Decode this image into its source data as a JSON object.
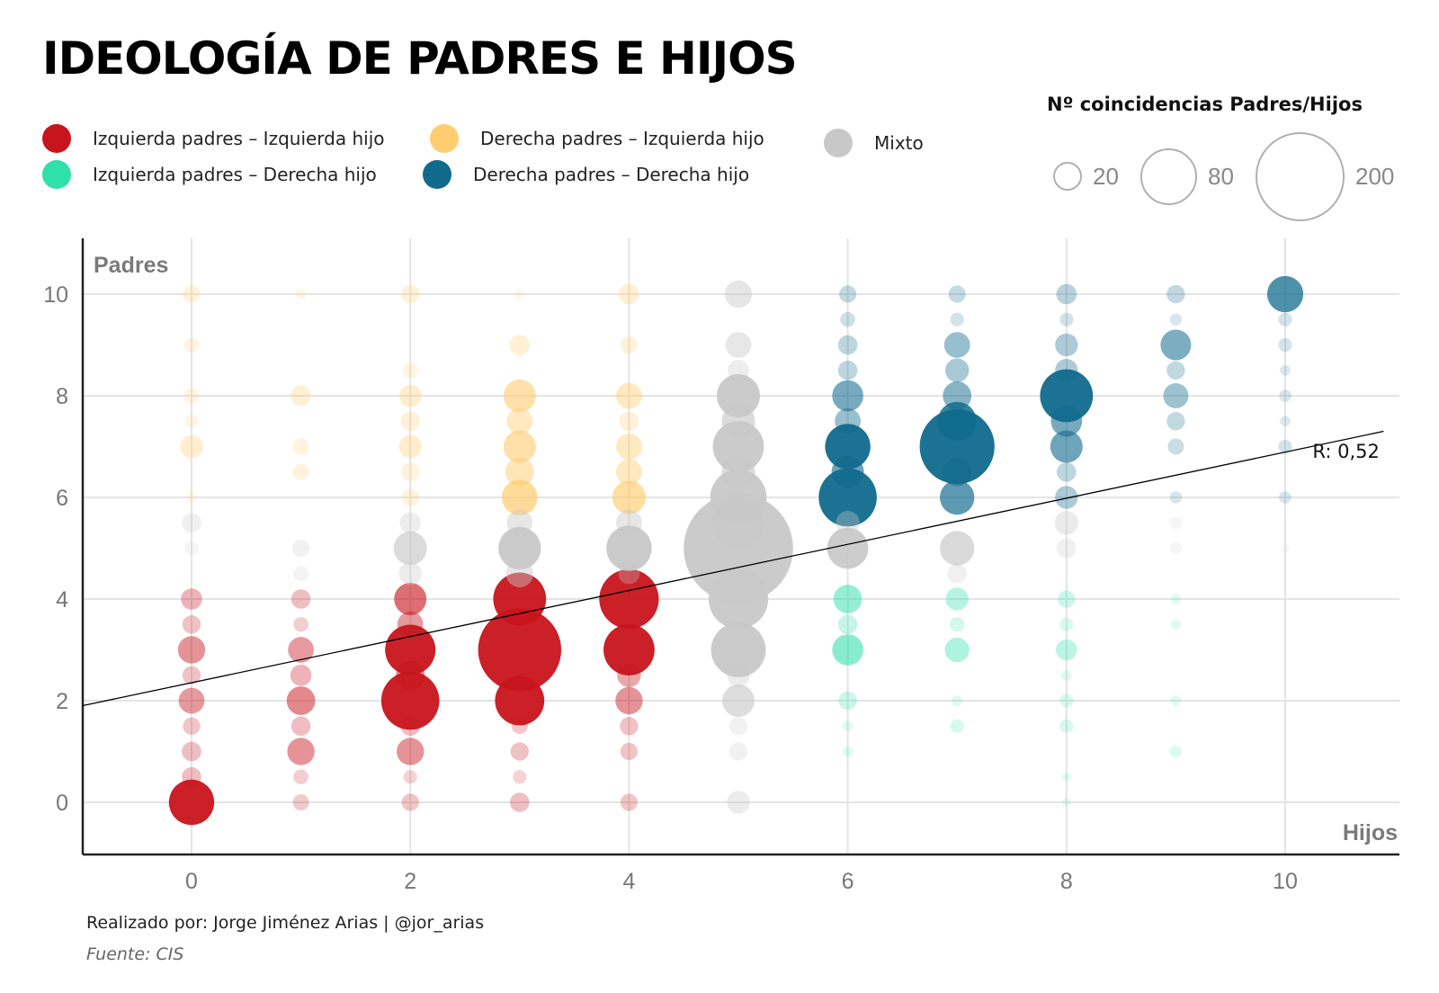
{
  "title": "IDEOLOGÍA DE PADRES E HIJOS",
  "legend": {
    "items": [
      {
        "label": "Izquierda padres – Izquierda hijo",
        "color": "#c8141c"
      },
      {
        "label": "Izquierda padres – Derecha hijo",
        "color": "#2ee0aa"
      },
      {
        "label": "Derecha padres – Izquierda hijo",
        "color": "#ffcc70"
      },
      {
        "label": "Derecha padres – Derecha hijo",
        "color": "#106a8c"
      },
      {
        "label": "Mixto",
        "color": "#c8c8c8"
      }
    ],
    "size_title": "Nº coincidencias Padres/Hijos",
    "sizes": [
      {
        "label": "20"
      },
      {
        "label": "80"
      },
      {
        "label": "200"
      }
    ]
  },
  "chart_data": {
    "type": "scatter",
    "title": "IDEOLOGÍA DE PADRES E HIJOS",
    "xlabel": "Hijos",
    "ylabel": "Padres",
    "xlim": [
      -1,
      11
    ],
    "ylim": [
      -1,
      11
    ],
    "x_ticks": [
      "0",
      "2",
      "4",
      "6",
      "8",
      "10"
    ],
    "y_ticks": [
      "0",
      "2",
      "4",
      "6",
      "8",
      "10"
    ],
    "size_encoding": "Nº coincidencias Padres/Hijos",
    "regression": {
      "label": "R: 0,52",
      "x0": -1,
      "y0": 1.9,
      "x1": 10.9,
      "y1": 7.3
    },
    "categories": {
      "LL": {
        "name": "Izquierda padres – Izquierda hijo",
        "color": "#c8141c"
      },
      "LR": {
        "name": "Izquierda padres – Derecha hijo",
        "color": "#2ee0aa"
      },
      "RL": {
        "name": "Derecha padres – Izquierda hijo",
        "color": "#ffcc70"
      },
      "RR": {
        "name": "Derecha padres – Derecha hijo",
        "color": "#106a8c"
      },
      "M": {
        "name": "Mixto",
        "color": "#c8c8c8"
      }
    },
    "points": [
      {
        "x": 0,
        "y": 10,
        "n": 8,
        "cat": "RL"
      },
      {
        "x": 0,
        "y": 9,
        "n": 6,
        "cat": "RL"
      },
      {
        "x": 0,
        "y": 8,
        "n": 6,
        "cat": "RL"
      },
      {
        "x": 0,
        "y": 7.5,
        "n": 5,
        "cat": "RL"
      },
      {
        "x": 0,
        "y": 7,
        "n": 14,
        "cat": "RL"
      },
      {
        "x": 0,
        "y": 6,
        "n": 3,
        "cat": "RL"
      },
      {
        "x": 0,
        "y": 5.5,
        "n": 10,
        "cat": "M"
      },
      {
        "x": 0,
        "y": 5,
        "n": 5,
        "cat": "M"
      },
      {
        "x": 0,
        "y": 4,
        "n": 12,
        "cat": "LL"
      },
      {
        "x": 0,
        "y": 3.5,
        "n": 9,
        "cat": "LL"
      },
      {
        "x": 0,
        "y": 3,
        "n": 20,
        "cat": "LL"
      },
      {
        "x": 0,
        "y": 2.5,
        "n": 9,
        "cat": "LL"
      },
      {
        "x": 0,
        "y": 2,
        "n": 18,
        "cat": "LL"
      },
      {
        "x": 0,
        "y": 1.5,
        "n": 8,
        "cat": "LL"
      },
      {
        "x": 0,
        "y": 1,
        "n": 10,
        "cat": "LL"
      },
      {
        "x": 0,
        "y": 0.5,
        "n": 10,
        "cat": "LL"
      },
      {
        "x": 0,
        "y": 0,
        "n": 55,
        "cat": "LL"
      },
      {
        "x": 1,
        "y": 10,
        "n": 3,
        "cat": "RL"
      },
      {
        "x": 1,
        "y": 8,
        "n": 11,
        "cat": "RL"
      },
      {
        "x": 1,
        "y": 7,
        "n": 7,
        "cat": "RL"
      },
      {
        "x": 1,
        "y": 6.5,
        "n": 7,
        "cat": "RL"
      },
      {
        "x": 1,
        "y": 5,
        "n": 8,
        "cat": "M"
      },
      {
        "x": 1,
        "y": 4.5,
        "n": 6,
        "cat": "M"
      },
      {
        "x": 1,
        "y": 4,
        "n": 10,
        "cat": "LL"
      },
      {
        "x": 1,
        "y": 3.5,
        "n": 6,
        "cat": "LL"
      },
      {
        "x": 1,
        "y": 3,
        "n": 18,
        "cat": "LL"
      },
      {
        "x": 1,
        "y": 2.5,
        "n": 12,
        "cat": "LL"
      },
      {
        "x": 1,
        "y": 2,
        "n": 22,
        "cat": "LL"
      },
      {
        "x": 1,
        "y": 1.5,
        "n": 10,
        "cat": "LL"
      },
      {
        "x": 1,
        "y": 1,
        "n": 20,
        "cat": "LL"
      },
      {
        "x": 1,
        "y": 0.5,
        "n": 6,
        "cat": "LL"
      },
      {
        "x": 1,
        "y": 0,
        "n": 7,
        "cat": "LL"
      },
      {
        "x": 2,
        "y": 10,
        "n": 9,
        "cat": "RL"
      },
      {
        "x": 2,
        "y": 8.5,
        "n": 6,
        "cat": "RL"
      },
      {
        "x": 2,
        "y": 8,
        "n": 13,
        "cat": "RL"
      },
      {
        "x": 2,
        "y": 7.5,
        "n": 10,
        "cat": "RL"
      },
      {
        "x": 2,
        "y": 7,
        "n": 14,
        "cat": "RL"
      },
      {
        "x": 2,
        "y": 6.5,
        "n": 9,
        "cat": "RL"
      },
      {
        "x": 2,
        "y": 6,
        "n": 8,
        "cat": "RL"
      },
      {
        "x": 2,
        "y": 5.5,
        "n": 12,
        "cat": "M"
      },
      {
        "x": 2,
        "y": 5,
        "n": 30,
        "cat": "M"
      },
      {
        "x": 2,
        "y": 4.5,
        "n": 14,
        "cat": "M"
      },
      {
        "x": 2,
        "y": 4,
        "n": 28,
        "cat": "LL"
      },
      {
        "x": 2,
        "y": 3.5,
        "n": 18,
        "cat": "LL"
      },
      {
        "x": 2,
        "y": 3,
        "n": 68,
        "cat": "LL"
      },
      {
        "x": 2,
        "y": 2.5,
        "n": 22,
        "cat": "LL"
      },
      {
        "x": 2,
        "y": 2,
        "n": 90,
        "cat": "LL"
      },
      {
        "x": 2,
        "y": 1.5,
        "n": 10,
        "cat": "LL"
      },
      {
        "x": 2,
        "y": 1,
        "n": 20,
        "cat": "LL"
      },
      {
        "x": 2,
        "y": 0.5,
        "n": 5,
        "cat": "LL"
      },
      {
        "x": 2,
        "y": 0,
        "n": 8,
        "cat": "LL"
      },
      {
        "x": 3,
        "y": 10,
        "n": 3,
        "cat": "RL"
      },
      {
        "x": 3,
        "y": 9,
        "n": 11,
        "cat": "RL"
      },
      {
        "x": 3,
        "y": 8,
        "n": 28,
        "cat": "RL"
      },
      {
        "x": 3,
        "y": 7.5,
        "n": 18,
        "cat": "RL"
      },
      {
        "x": 3,
        "y": 7,
        "n": 28,
        "cat": "RL"
      },
      {
        "x": 3,
        "y": 6.5,
        "n": 22,
        "cat": "RL"
      },
      {
        "x": 3,
        "y": 6,
        "n": 34,
        "cat": "RL"
      },
      {
        "x": 3,
        "y": 5.5,
        "n": 18,
        "cat": "M"
      },
      {
        "x": 3,
        "y": 5,
        "n": 48,
        "cat": "M"
      },
      {
        "x": 3,
        "y": 4.5,
        "n": 20,
        "cat": "M"
      },
      {
        "x": 3,
        "y": 4,
        "n": 75,
        "cat": "LL"
      },
      {
        "x": 3,
        "y": 3,
        "n": 185,
        "cat": "LL"
      },
      {
        "x": 3,
        "y": 2,
        "n": 65,
        "cat": "LL"
      },
      {
        "x": 3,
        "y": 1.5,
        "n": 7,
        "cat": "LL"
      },
      {
        "x": 3,
        "y": 1,
        "n": 9,
        "cat": "LL"
      },
      {
        "x": 3,
        "y": 0.5,
        "n": 5,
        "cat": "LL"
      },
      {
        "x": 3,
        "y": 0,
        "n": 10,
        "cat": "LL"
      },
      {
        "x": 4,
        "y": 10,
        "n": 11,
        "cat": "RL"
      },
      {
        "x": 4,
        "y": 9,
        "n": 8,
        "cat": "RL"
      },
      {
        "x": 4,
        "y": 8,
        "n": 18,
        "cat": "RL"
      },
      {
        "x": 4,
        "y": 7.5,
        "n": 10,
        "cat": "RL"
      },
      {
        "x": 4,
        "y": 7,
        "n": 18,
        "cat": "RL"
      },
      {
        "x": 4,
        "y": 6.5,
        "n": 18,
        "cat": "RL"
      },
      {
        "x": 4,
        "y": 6,
        "n": 30,
        "cat": "RL"
      },
      {
        "x": 4,
        "y": 5.5,
        "n": 18,
        "cat": "M"
      },
      {
        "x": 4,
        "y": 5,
        "n": 55,
        "cat": "M"
      },
      {
        "x": 4,
        "y": 4.5,
        "n": 12,
        "cat": "M"
      },
      {
        "x": 4,
        "y": 4,
        "n": 95,
        "cat": "LL"
      },
      {
        "x": 4,
        "y": 3,
        "n": 70,
        "cat": "LL"
      },
      {
        "x": 4,
        "y": 2.5,
        "n": 15,
        "cat": "LL"
      },
      {
        "x": 4,
        "y": 2,
        "n": 20,
        "cat": "LL"
      },
      {
        "x": 4,
        "y": 1.5,
        "n": 9,
        "cat": "LL"
      },
      {
        "x": 4,
        "y": 1,
        "n": 8,
        "cat": "LL"
      },
      {
        "x": 4,
        "y": 0,
        "n": 8,
        "cat": "LL"
      },
      {
        "x": 5,
        "y": 10,
        "n": 20,
        "cat": "M"
      },
      {
        "x": 5,
        "y": 9,
        "n": 18,
        "cat": "M"
      },
      {
        "x": 5,
        "y": 8.5,
        "n": 12,
        "cat": "M"
      },
      {
        "x": 5,
        "y": 8,
        "n": 50,
        "cat": "M"
      },
      {
        "x": 5,
        "y": 7.5,
        "n": 30,
        "cat": "M"
      },
      {
        "x": 5,
        "y": 7,
        "n": 70,
        "cat": "M"
      },
      {
        "x": 5,
        "y": 6.5,
        "n": 30,
        "cat": "M"
      },
      {
        "x": 5,
        "y": 6,
        "n": 85,
        "cat": "M"
      },
      {
        "x": 5,
        "y": 5.5,
        "n": 70,
        "cat": "M"
      },
      {
        "x": 5,
        "y": 5,
        "n": 320,
        "cat": "M"
      },
      {
        "x": 5,
        "y": 4,
        "n": 95,
        "cat": "M"
      },
      {
        "x": 5,
        "y": 3,
        "n": 80,
        "cat": "M"
      },
      {
        "x": 5,
        "y": 2.5,
        "n": 14,
        "cat": "M"
      },
      {
        "x": 5,
        "y": 2,
        "n": 28,
        "cat": "M"
      },
      {
        "x": 5,
        "y": 1.5,
        "n": 9,
        "cat": "M"
      },
      {
        "x": 5,
        "y": 1,
        "n": 9,
        "cat": "M"
      },
      {
        "x": 5,
        "y": 0,
        "n": 14,
        "cat": "M"
      },
      {
        "x": 6,
        "y": 10,
        "n": 8,
        "cat": "RR"
      },
      {
        "x": 6,
        "y": 9.5,
        "n": 6,
        "cat": "RR"
      },
      {
        "x": 6,
        "y": 9,
        "n": 10,
        "cat": "RR"
      },
      {
        "x": 6,
        "y": 8.5,
        "n": 10,
        "cat": "RR"
      },
      {
        "x": 6,
        "y": 8,
        "n": 26,
        "cat": "RR"
      },
      {
        "x": 6,
        "y": 7.5,
        "n": 18,
        "cat": "RR"
      },
      {
        "x": 6,
        "y": 7,
        "n": 55,
        "cat": "RR"
      },
      {
        "x": 6,
        "y": 6.5,
        "n": 28,
        "cat": "RR"
      },
      {
        "x": 6,
        "y": 6,
        "n": 90,
        "cat": "RR"
      },
      {
        "x": 6,
        "y": 5.5,
        "n": 15,
        "cat": "M"
      },
      {
        "x": 6,
        "y": 5,
        "n": 45,
        "cat": "M"
      },
      {
        "x": 6,
        "y": 4,
        "n": 22,
        "cat": "LR"
      },
      {
        "x": 6,
        "y": 3.5,
        "n": 10,
        "cat": "LR"
      },
      {
        "x": 6,
        "y": 3,
        "n": 26,
        "cat": "LR"
      },
      {
        "x": 6,
        "y": 2,
        "n": 9,
        "cat": "LR"
      },
      {
        "x": 6,
        "y": 1.5,
        "n": 3,
        "cat": "LR"
      },
      {
        "x": 6,
        "y": 1,
        "n": 3,
        "cat": "LR"
      },
      {
        "x": 7,
        "y": 10,
        "n": 8,
        "cat": "RR"
      },
      {
        "x": 7,
        "y": 9.5,
        "n": 5,
        "cat": "RR"
      },
      {
        "x": 7,
        "y": 9,
        "n": 18,
        "cat": "RR"
      },
      {
        "x": 7,
        "y": 8.5,
        "n": 15,
        "cat": "RR"
      },
      {
        "x": 7,
        "y": 8,
        "n": 22,
        "cat": "RR"
      },
      {
        "x": 7,
        "y": 7.5,
        "n": 40,
        "cat": "RR"
      },
      {
        "x": 7,
        "y": 7,
        "n": 150,
        "cat": "RR"
      },
      {
        "x": 7,
        "y": 6.5,
        "n": 22,
        "cat": "RR"
      },
      {
        "x": 7,
        "y": 6,
        "n": 32,
        "cat": "RR"
      },
      {
        "x": 7,
        "y": 5,
        "n": 32,
        "cat": "M"
      },
      {
        "x": 7,
        "y": 4.5,
        "n": 10,
        "cat": "M"
      },
      {
        "x": 7,
        "y": 4,
        "n": 14,
        "cat": "LR"
      },
      {
        "x": 7,
        "y": 3.5,
        "n": 6,
        "cat": "LR"
      },
      {
        "x": 7,
        "y": 3,
        "n": 16,
        "cat": "LR"
      },
      {
        "x": 7,
        "y": 2,
        "n": 3,
        "cat": "LR"
      },
      {
        "x": 7,
        "y": 1.5,
        "n": 5,
        "cat": "LR"
      },
      {
        "x": 8,
        "y": 10,
        "n": 11,
        "cat": "RR"
      },
      {
        "x": 8,
        "y": 9.5,
        "n": 5,
        "cat": "RR"
      },
      {
        "x": 8,
        "y": 9,
        "n": 14,
        "cat": "RR"
      },
      {
        "x": 8,
        "y": 8.5,
        "n": 14,
        "cat": "RR"
      },
      {
        "x": 8,
        "y": 8,
        "n": 75,
        "cat": "RR"
      },
      {
        "x": 8,
        "y": 7.5,
        "n": 26,
        "cat": "RR"
      },
      {
        "x": 8,
        "y": 7,
        "n": 28,
        "cat": "RR"
      },
      {
        "x": 8,
        "y": 6.5,
        "n": 10,
        "cat": "RR"
      },
      {
        "x": 8,
        "y": 6,
        "n": 14,
        "cat": "RR"
      },
      {
        "x": 8,
        "y": 5.5,
        "n": 15,
        "cat": "M"
      },
      {
        "x": 8,
        "y": 5,
        "n": 10,
        "cat": "M"
      },
      {
        "x": 8,
        "y": 4,
        "n": 8,
        "cat": "LR"
      },
      {
        "x": 8,
        "y": 3.5,
        "n": 5,
        "cat": "LR"
      },
      {
        "x": 8,
        "y": 3,
        "n": 12,
        "cat": "LR"
      },
      {
        "x": 8,
        "y": 2.5,
        "n": 3,
        "cat": "LR"
      },
      {
        "x": 8,
        "y": 2,
        "n": 5,
        "cat": "LR"
      },
      {
        "x": 8,
        "y": 1.5,
        "n": 5,
        "cat": "LR"
      },
      {
        "x": 8,
        "y": 0.5,
        "n": 2,
        "cat": "LR"
      },
      {
        "x": 8,
        "y": 0,
        "n": 2,
        "cat": "LR"
      },
      {
        "x": 9,
        "y": 10,
        "n": 9,
        "cat": "RR"
      },
      {
        "x": 9,
        "y": 9.5,
        "n": 4,
        "cat": "RR"
      },
      {
        "x": 9,
        "y": 9,
        "n": 25,
        "cat": "RR"
      },
      {
        "x": 9,
        "y": 8.5,
        "n": 9,
        "cat": "RR"
      },
      {
        "x": 9,
        "y": 8,
        "n": 17,
        "cat": "RR"
      },
      {
        "x": 9,
        "y": 7.5,
        "n": 9,
        "cat": "RR"
      },
      {
        "x": 9,
        "y": 7,
        "n": 7,
        "cat": "RR"
      },
      {
        "x": 9,
        "y": 6,
        "n": 4,
        "cat": "RR"
      },
      {
        "x": 9,
        "y": 5.5,
        "n": 4,
        "cat": "M"
      },
      {
        "x": 9,
        "y": 5,
        "n": 4,
        "cat": "M"
      },
      {
        "x": 9,
        "y": 4,
        "n": 3,
        "cat": "LR"
      },
      {
        "x": 9,
        "y": 3.5,
        "n": 3,
        "cat": "LR"
      },
      {
        "x": 9,
        "y": 2,
        "n": 3,
        "cat": "LR"
      },
      {
        "x": 9,
        "y": 1,
        "n": 4,
        "cat": "LR"
      },
      {
        "x": 10,
        "y": 10,
        "n": 35,
        "cat": "RR"
      },
      {
        "x": 10,
        "y": 9.5,
        "n": 5,
        "cat": "RR"
      },
      {
        "x": 10,
        "y": 9,
        "n": 5,
        "cat": "RR"
      },
      {
        "x": 10,
        "y": 8.5,
        "n": 3,
        "cat": "RR"
      },
      {
        "x": 10,
        "y": 8,
        "n": 4,
        "cat": "RR"
      },
      {
        "x": 10,
        "y": 7.5,
        "n": 3,
        "cat": "RR"
      },
      {
        "x": 10,
        "y": 7,
        "n": 5,
        "cat": "RR"
      },
      {
        "x": 10,
        "y": 6,
        "n": 4,
        "cat": "RR"
      },
      {
        "x": 10,
        "y": 5,
        "n": 2,
        "cat": "M"
      }
    ]
  },
  "footer": {
    "credit": "Realizado por: Jorge Jiménez Arias | @jor_arias",
    "source": "Fuente: CIS"
  }
}
